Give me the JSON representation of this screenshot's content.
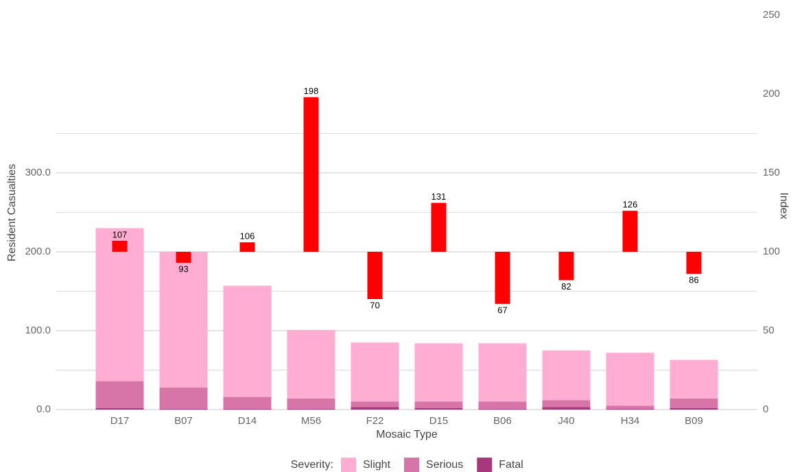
{
  "chart_data": {
    "type": "bar",
    "categories": [
      "D17",
      "B07",
      "D14",
      "M56",
      "F22",
      "D15",
      "B06",
      "J40",
      "H34",
      "B09"
    ],
    "series": [
      {
        "name": "Slight",
        "color": "#ffadd2",
        "values": [
          194,
          172,
          141,
          87,
          75,
          74,
          74,
          63,
          67,
          49
        ]
      },
      {
        "name": "Serious",
        "color": "#d774a8",
        "values": [
          34,
          27,
          15,
          13,
          7,
          8,
          9,
          9,
          4,
          12
        ]
      },
      {
        "name": "Fatal",
        "color": "#a8387c",
        "values": [
          2,
          1,
          1,
          1,
          3,
          2,
          1,
          3,
          1,
          2
        ]
      },
      {
        "name": "Index",
        "color": "#ff0000",
        "axis": "y2",
        "values": [
          107,
          93,
          106,
          198,
          70,
          131,
          67,
          82,
          126,
          86
        ]
      }
    ],
    "stacked": true,
    "y2_baseline": 100,
    "xlabel": "Mosaic Type",
    "ylabel": "Resident Casualties",
    "y2label": "Index",
    "legend_title": "Severity:",
    "legend": "bottom",
    "grid": true,
    "ylim": [
      0,
      500
    ],
    "yticks": [
      {
        "value": 0,
        "label": "0.0"
      },
      {
        "value": 100,
        "label": "100.0"
      },
      {
        "value": 200,
        "label": "200.0"
      },
      {
        "value": 300,
        "label": "300.0"
      }
    ],
    "minor_yticks": [
      50,
      150,
      250,
      350
    ],
    "y2lim": [
      0,
      250
    ],
    "y2ticks": [
      0,
      50,
      100,
      150,
      200,
      250
    ]
  }
}
